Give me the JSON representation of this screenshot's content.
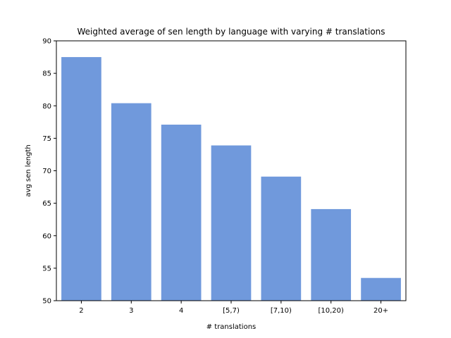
{
  "chart_data": {
    "type": "bar",
    "title": "Weighted average of sen length by language with varying # translations",
    "xlabel": "# translations",
    "ylabel": "avg sen length",
    "categories": [
      "2",
      "3",
      "4",
      "[5,7)",
      "[7,10)",
      "[10,20)",
      "20+"
    ],
    "values": [
      87.5,
      80.4,
      77.1,
      73.9,
      69.1,
      64.1,
      53.5
    ],
    "ylim": [
      50,
      90
    ],
    "yticks": [
      50,
      55,
      60,
      65,
      70,
      75,
      80,
      85,
      90
    ],
    "bar_color": "#7099dc",
    "grid": false,
    "legend": "none"
  }
}
